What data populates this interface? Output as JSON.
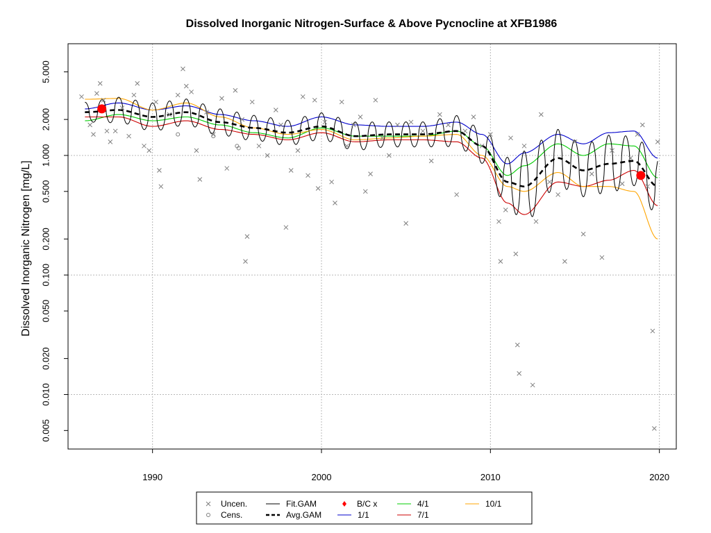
{
  "chart_data": {
    "type": "scatter",
    "title": "Dissolved Inorganic Nitrogen-Surface & Above Pycnocline at XFB1986",
    "xlabel": "",
    "ylabel": "Dissolved Inorganic Nitrogen [mg/L]",
    "xlim": [
      1985,
      2021
    ],
    "ylim": [
      0.0035,
      8.6
    ],
    "y_scale": "log",
    "grid": true,
    "legend_position": "bottom",
    "x_ticks": [
      1990,
      2000,
      2010,
      2020
    ],
    "x_tick_labels": [
      "1990",
      "2000",
      "2010",
      "2020"
    ],
    "y_ticks": [
      0.005,
      0.01,
      0.02,
      0.05,
      0.1,
      0.2,
      0.5,
      1,
      2,
      5
    ],
    "y_tick_labels": [
      "0.005",
      "0.010",
      "0.020",
      "0.050",
      "0.100",
      "0.200",
      "0.500",
      "1.000",
      "2.000",
      "5.000"
    ],
    "gridlines_y": [
      0.01,
      0.1,
      1
    ],
    "gridlines_x": [
      1990,
      2000,
      2010,
      2020
    ],
    "colors": {
      "points": "#7f7f7f",
      "fit": "#000000",
      "avg": "#000000",
      "bc": "#ff0000",
      "jan": "#0000cc",
      "apr": "#00cc00",
      "jul": "#cc0000",
      "oct": "#ffa500"
    },
    "legend": [
      {
        "label": "Uncen.",
        "symbol": "x",
        "color": "#7f7f7f"
      },
      {
        "label": "Cens.",
        "symbol": "o",
        "color": "#7f7f7f"
      },
      {
        "label": "Fit.GAM",
        "symbol": "line",
        "color": "#000000"
      },
      {
        "label": "Avg.GAM",
        "symbol": "dash",
        "color": "#000000"
      },
      {
        "label": "B/C x",
        "symbol": "diamond",
        "color": "#ff0000"
      },
      {
        "label": "1/1",
        "symbol": "line",
        "color": "#0000cc"
      },
      {
        "label": "4/1",
        "symbol": "line",
        "color": "#00cc00"
      },
      {
        "label": "7/1",
        "symbol": "line",
        "color": "#cc0000"
      },
      {
        "label": "10/1",
        "symbol": "line",
        "color": "#ffa500"
      }
    ],
    "series": [
      {
        "name": "1/1",
        "color": "#0000cc",
        "x": [
          1986,
          1988,
          1990,
          1992,
          1994,
          1996,
          1998,
          2000,
          2002,
          2004,
          2006,
          2008,
          2009.5,
          2011,
          2012,
          2014,
          2015.5,
          2017,
          2018.5,
          2019.9
        ],
        "y": [
          2.45,
          2.75,
          2.4,
          2.6,
          2.2,
          1.95,
          1.75,
          2.1,
          1.8,
          1.75,
          1.75,
          1.9,
          1.5,
          0.85,
          1.05,
          1.5,
          1.25,
          1.55,
          1.6,
          0.95
        ]
      },
      {
        "name": "4/1",
        "color": "#00cc00",
        "x": [
          1986,
          1988,
          1990,
          1992,
          1994,
          1996,
          1998,
          2000,
          2002,
          2004,
          2006,
          2008,
          2009.5,
          2011,
          2012,
          2014,
          2015.5,
          2017,
          2018.5,
          2019.9
        ],
        "y": [
          1.95,
          2.2,
          1.95,
          2.1,
          1.8,
          1.55,
          1.4,
          1.7,
          1.45,
          1.45,
          1.45,
          1.6,
          1.2,
          0.68,
          0.82,
          1.25,
          1.0,
          1.25,
          1.2,
          0.65
        ]
      },
      {
        "name": "7/1",
        "color": "#cc0000",
        "x": [
          1986,
          1988,
          1990,
          1992,
          1994,
          1996,
          1998,
          2000,
          2002,
          2004,
          2006,
          2008,
          2009.5,
          2011,
          2012,
          2014,
          2015.5,
          2017,
          2018.5,
          2019.9
        ],
        "y": [
          2.1,
          2.1,
          1.75,
          1.95,
          1.65,
          1.5,
          1.35,
          1.55,
          1.3,
          1.35,
          1.35,
          1.3,
          0.95,
          0.4,
          0.32,
          0.6,
          0.55,
          0.62,
          0.75,
          0.38
        ]
      },
      {
        "name": "10/1",
        "color": "#ffa500",
        "x": [
          1986,
          1988,
          1990,
          1992,
          1994,
          1996,
          1998,
          2000,
          2002,
          2004,
          2006,
          2008,
          2009.5,
          2011,
          2012,
          2014,
          2015.5,
          2017,
          2018.5,
          2019.9
        ],
        "y": [
          2.95,
          3.0,
          2.4,
          2.75,
          2.1,
          1.7,
          1.5,
          1.65,
          1.35,
          1.4,
          1.45,
          1.5,
          1.0,
          0.55,
          0.5,
          0.72,
          0.55,
          0.55,
          0.5,
          0.2
        ]
      },
      {
        "name": "Avg.GAM",
        "color": "#000000",
        "x": [
          1986,
          1988,
          1990,
          1992,
          1994,
          1996,
          1998,
          2000,
          2002,
          2004,
          2006,
          2008,
          2009.5,
          2011,
          2012,
          2014,
          2015.5,
          2017,
          2018.5,
          2019.9
        ],
        "y": [
          2.3,
          2.4,
          2.1,
          2.3,
          1.9,
          1.7,
          1.55,
          1.75,
          1.45,
          1.5,
          1.5,
          1.6,
          1.2,
          0.6,
          0.55,
          0.95,
          0.75,
          0.85,
          0.9,
          0.55
        ]
      }
    ],
    "bc_points": [
      {
        "x": 1987,
        "y": 2.45
      },
      {
        "x": 2018.9,
        "y": 0.68
      }
    ],
    "uncensored_points": [
      {
        "x": 1985.8,
        "y": 3.1
      },
      {
        "x": 1986.3,
        "y": 1.8
      },
      {
        "x": 1986.5,
        "y": 1.5
      },
      {
        "x": 1986.7,
        "y": 3.3
      },
      {
        "x": 1986.9,
        "y": 4.0
      },
      {
        "x": 1987.1,
        "y": 2.9
      },
      {
        "x": 1987.3,
        "y": 1.6
      },
      {
        "x": 1987.5,
        "y": 1.3
      },
      {
        "x": 1987.8,
        "y": 1.6
      },
      {
        "x": 1988.2,
        "y": 2.5
      },
      {
        "x": 1988.6,
        "y": 1.45
      },
      {
        "x": 1988.9,
        "y": 3.2
      },
      {
        "x": 1989.1,
        "y": 4.0
      },
      {
        "x": 1989.5,
        "y": 1.2
      },
      {
        "x": 1989.8,
        "y": 1.1
      },
      {
        "x": 1990.2,
        "y": 2.8
      },
      {
        "x": 1990.4,
        "y": 0.75
      },
      {
        "x": 1990.5,
        "y": 0.55
      },
      {
        "x": 1991.0,
        "y": 2.2
      },
      {
        "x": 1991.5,
        "y": 3.2
      },
      {
        "x": 1991.8,
        "y": 5.3
      },
      {
        "x": 1992.0,
        "y": 3.8
      },
      {
        "x": 1992.3,
        "y": 3.4
      },
      {
        "x": 1992.6,
        "y": 1.1
      },
      {
        "x": 1992.8,
        "y": 0.63
      },
      {
        "x": 1993.2,
        "y": 2.3
      },
      {
        "x": 1993.6,
        "y": 1.5
      },
      {
        "x": 1994.1,
        "y": 3.0
      },
      {
        "x": 1994.4,
        "y": 0.78
      },
      {
        "x": 1994.9,
        "y": 3.5
      },
      {
        "x": 1995.3,
        "y": 2.0
      },
      {
        "x": 1995.6,
        "y": 0.21
      },
      {
        "x": 1995.5,
        "y": 0.13
      },
      {
        "x": 1995.9,
        "y": 2.8
      },
      {
        "x": 1996.3,
        "y": 1.2
      },
      {
        "x": 1996.8,
        "y": 1.0
      },
      {
        "x": 1997.3,
        "y": 2.4
      },
      {
        "x": 1997.6,
        "y": 1.8
      },
      {
        "x": 1997.9,
        "y": 0.25
      },
      {
        "x": 1998.2,
        "y": 0.75
      },
      {
        "x": 1998.6,
        "y": 1.1
      },
      {
        "x": 1998.9,
        "y": 3.1
      },
      {
        "x": 1999.2,
        "y": 0.68
      },
      {
        "x": 1999.6,
        "y": 2.9
      },
      {
        "x": 1999.8,
        "y": 0.53
      },
      {
        "x": 2000.2,
        "y": 1.9
      },
      {
        "x": 2000.6,
        "y": 0.6
      },
      {
        "x": 2000.8,
        "y": 0.4
      },
      {
        "x": 2001.2,
        "y": 2.8
      },
      {
        "x": 2001.5,
        "y": 1.2
      },
      {
        "x": 2001.9,
        "y": 1.8
      },
      {
        "x": 2002.3,
        "y": 2.1
      },
      {
        "x": 2002.6,
        "y": 0.5
      },
      {
        "x": 2002.9,
        "y": 0.7
      },
      {
        "x": 2003.2,
        "y": 2.9
      },
      {
        "x": 2003.6,
        "y": 1.4
      },
      {
        "x": 2004.0,
        "y": 1.0
      },
      {
        "x": 2004.5,
        "y": 1.8
      },
      {
        "x": 2005.0,
        "y": 0.27
      },
      {
        "x": 2005.3,
        "y": 1.9
      },
      {
        "x": 2006.0,
        "y": 1.6
      },
      {
        "x": 2006.5,
        "y": 0.9
      },
      {
        "x": 2007.0,
        "y": 2.2
      },
      {
        "x": 2007.5,
        "y": 1.8
      },
      {
        "x": 2008.0,
        "y": 0.47
      },
      {
        "x": 2008.5,
        "y": 1.6
      },
      {
        "x": 2009.0,
        "y": 2.1
      },
      {
        "x": 2009.5,
        "y": 1.2
      },
      {
        "x": 2010.0,
        "y": 1.5
      },
      {
        "x": 2010.5,
        "y": 0.28
      },
      {
        "x": 2010.6,
        "y": 0.13
      },
      {
        "x": 2010.9,
        "y": 0.35
      },
      {
        "x": 2011.2,
        "y": 1.4
      },
      {
        "x": 2011.5,
        "y": 0.15
      },
      {
        "x": 2011.6,
        "y": 0.026
      },
      {
        "x": 2011.7,
        "y": 0.015
      },
      {
        "x": 2012.0,
        "y": 1.2
      },
      {
        "x": 2012.5,
        "y": 0.012
      },
      {
        "x": 2012.7,
        "y": 0.28
      },
      {
        "x": 2013.0,
        "y": 2.2
      },
      {
        "x": 2013.5,
        "y": 0.6
      },
      {
        "x": 2014.0,
        "y": 0.47
      },
      {
        "x": 2014.4,
        "y": 0.13
      },
      {
        "x": 2015.0,
        "y": 1.3
      },
      {
        "x": 2015.5,
        "y": 0.22
      },
      {
        "x": 2016.0,
        "y": 0.7
      },
      {
        "x": 2016.6,
        "y": 0.14
      },
      {
        "x": 2017.2,
        "y": 1.1
      },
      {
        "x": 2017.8,
        "y": 0.58
      },
      {
        "x": 2018.3,
        "y": 0.95
      },
      {
        "x": 2018.7,
        "y": 1.5
      },
      {
        "x": 2019.0,
        "y": 1.8
      },
      {
        "x": 2019.3,
        "y": 0.55
      },
      {
        "x": 2019.6,
        "y": 0.034
      },
      {
        "x": 2019.7,
        "y": 0.0052
      },
      {
        "x": 2019.9,
        "y": 1.3
      }
    ],
    "censored_points": [
      {
        "x": 1991.5,
        "y": 1.5
      },
      {
        "x": 1993.6,
        "y": 1.45
      },
      {
        "x": 1995.0,
        "y": 1.2
      },
      {
        "x": 1995.1,
        "y": 1.15
      }
    ]
  }
}
